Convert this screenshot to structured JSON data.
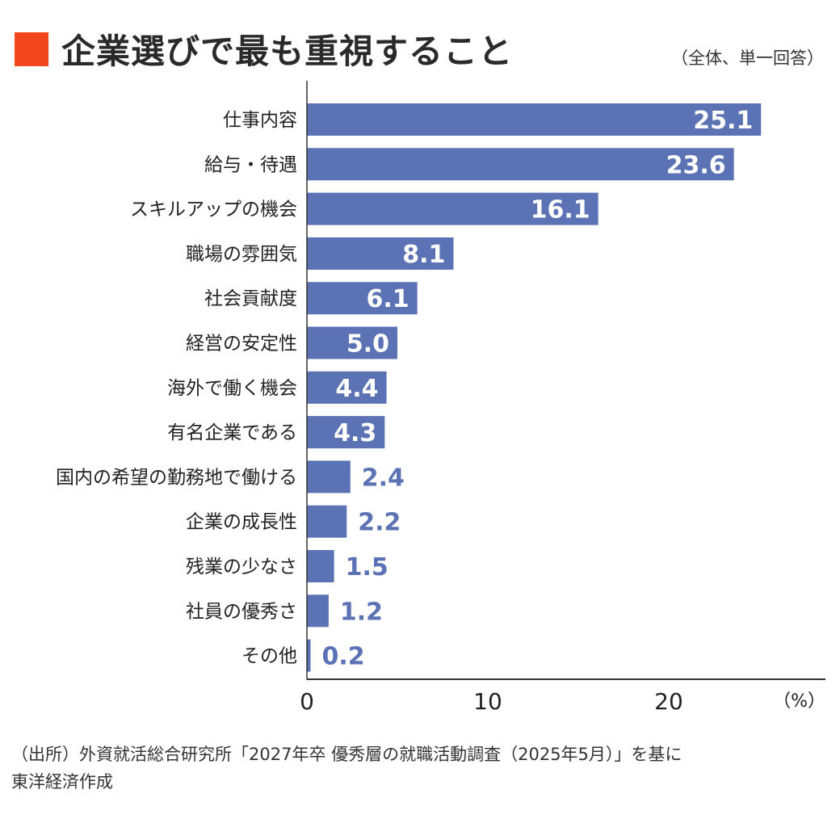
{
  "colors": {
    "bar": "#5b72b4",
    "title_mark": "#f2471c",
    "axis": "#333333",
    "inside_label": "#ffffff",
    "outside_label": "#5b72b4"
  },
  "chart_data": {
    "type": "bar",
    "orientation": "horizontal",
    "title": "企業選びで最も重視すること",
    "subtitle": "（全体、単一回答）",
    "categories": [
      "仕事内容",
      "給与・待遇",
      "スキルアップの機会",
      "職場の雰囲気",
      "社会貢献度",
      "経営の安定性",
      "海外で働く機会",
      "有名企業である",
      "国内の希望の勤務地で働ける",
      "企業の成長性",
      "残業の少なさ",
      "社員の優秀さ",
      "その他"
    ],
    "values": [
      25.1,
      23.6,
      16.1,
      8.1,
      6.1,
      5.0,
      4.4,
      4.3,
      2.4,
      2.2,
      1.5,
      1.2,
      0.2
    ],
    "value_labels": [
      "25.1",
      "23.6",
      "16.1",
      "8.1",
      "6.1",
      "5.0",
      "4.4",
      "4.3",
      "2.4",
      "2.2",
      "1.5",
      "1.2",
      "0.2"
    ],
    "xlim": [
      0,
      28.4
    ],
    "xticks": [
      "0",
      "10",
      "20"
    ],
    "xunit": "（%）",
    "grid": false
  },
  "source": {
    "line1": "（出所）外資就活総合研究所「2027年卒 優秀層の就職活動調査（2025年5月）」を基に",
    "line2": "東洋経済作成"
  }
}
